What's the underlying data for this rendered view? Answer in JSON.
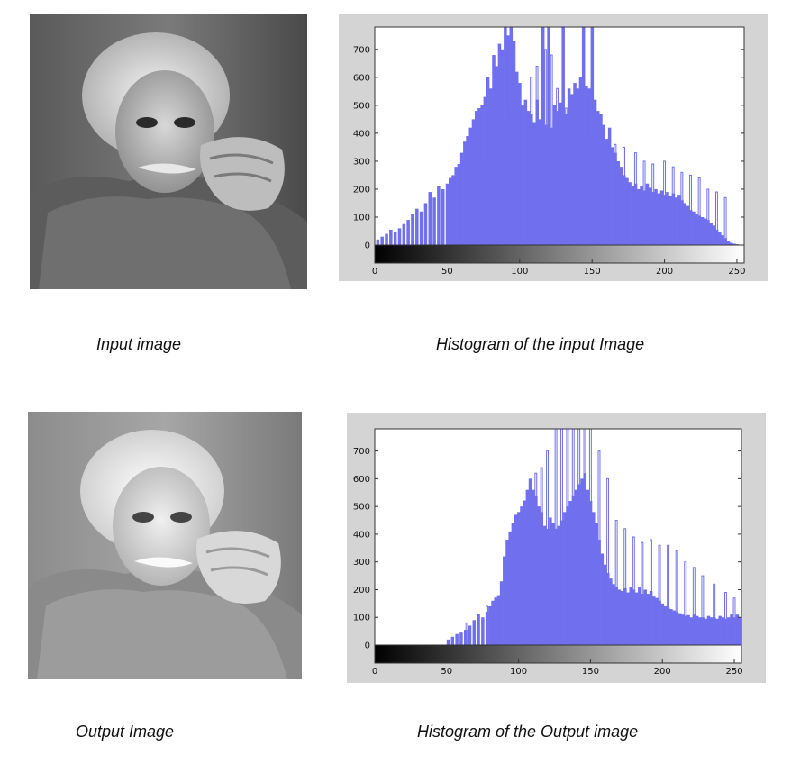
{
  "captions": {
    "input_image": "Input image",
    "input_histogram": "Histogram of the input Image",
    "output_image": "Output Image",
    "output_histogram": "Histogram of the Output image"
  },
  "colors": {
    "bars": "#7070ee",
    "panel_bg": "#d4d4d4",
    "plot_bg": "#ffffff"
  },
  "icons": {
    "photo": "portrait-photo"
  },
  "chart_data": [
    {
      "type": "bar",
      "name": "input-histogram",
      "xlim": [
        0,
        255
      ],
      "ylim": [
        0,
        780
      ],
      "xticks": [
        0,
        50,
        100,
        150,
        200,
        250
      ],
      "yticks": [
        0,
        100,
        200,
        300,
        400,
        500,
        600,
        700
      ],
      "colorbar": "grayscale",
      "bins": [
        [
          2,
          20
        ],
        [
          5,
          30
        ],
        [
          8,
          40
        ],
        [
          11,
          55
        ],
        [
          14,
          45
        ],
        [
          17,
          60
        ],
        [
          20,
          75
        ],
        [
          23,
          90
        ],
        [
          26,
          110
        ],
        [
          29,
          130
        ],
        [
          32,
          120
        ],
        [
          35,
          150
        ],
        [
          38,
          190
        ],
        [
          41,
          170
        ],
        [
          44,
          210
        ],
        [
          47,
          200
        ],
        [
          50,
          220
        ],
        [
          52,
          240
        ],
        [
          54,
          250
        ],
        [
          56,
          280
        ],
        [
          58,
          290
        ],
        [
          60,
          330
        ],
        [
          62,
          370
        ],
        [
          64,
          390
        ],
        [
          66,
          420
        ],
        [
          68,
          450
        ],
        [
          70,
          480
        ],
        [
          72,
          490
        ],
        [
          74,
          500
        ],
        [
          76,
          530
        ],
        [
          78,
          600
        ],
        [
          80,
          560
        ],
        [
          82,
          680
        ],
        [
          84,
          640
        ],
        [
          86,
          720
        ],
        [
          88,
          700
        ],
        [
          90,
          780
        ],
        [
          92,
          750
        ],
        [
          94,
          780
        ],
        [
          96,
          730
        ],
        [
          98,
          620
        ],
        [
          100,
          580
        ],
        [
          102,
          500
        ],
        [
          104,
          520
        ],
        [
          106,
          480
        ],
        [
          108,
          470
        ],
        [
          110,
          440
        ],
        [
          112,
          520
        ],
        [
          114,
          450
        ],
        [
          116,
          780
        ],
        [
          118,
          430
        ],
        [
          120,
          780
        ],
        [
          122,
          420
        ],
        [
          124,
          500
        ],
        [
          126,
          480
        ],
        [
          128,
          510
        ],
        [
          130,
          780
        ],
        [
          132,
          470
        ],
        [
          134,
          560
        ],
        [
          136,
          540
        ],
        [
          138,
          580
        ],
        [
          140,
          560
        ],
        [
          142,
          600
        ],
        [
          144,
          780
        ],
        [
          146,
          570
        ],
        [
          148,
          560
        ],
        [
          150,
          780
        ],
        [
          152,
          520
        ],
        [
          154,
          480
        ],
        [
          156,
          470
        ],
        [
          158,
          430
        ],
        [
          160,
          380
        ],
        [
          162,
          420
        ],
        [
          164,
          350
        ],
        [
          166,
          330
        ],
        [
          168,
          300
        ],
        [
          170,
          280
        ],
        [
          172,
          250
        ],
        [
          174,
          240
        ],
        [
          176,
          225
        ],
        [
          178,
          210
        ],
        [
          180,
          220
        ],
        [
          182,
          200
        ],
        [
          184,
          210
        ],
        [
          186,
          195
        ],
        [
          188,
          220
        ],
        [
          190,
          205
        ],
        [
          192,
          190
        ],
        [
          194,
          200
        ],
        [
          196,
          185
        ],
        [
          198,
          195
        ],
        [
          200,
          180
        ],
        [
          202,
          190
        ],
        [
          204,
          175
        ],
        [
          206,
          185
        ],
        [
          208,
          170
        ],
        [
          210,
          180
        ],
        [
          212,
          160
        ],
        [
          214,
          150
        ],
        [
          216,
          140
        ],
        [
          218,
          125
        ],
        [
          220,
          120
        ],
        [
          222,
          110
        ],
        [
          224,
          105
        ],
        [
          226,
          100
        ],
        [
          228,
          95
        ],
        [
          230,
          90
        ],
        [
          232,
          80
        ],
        [
          234,
          70
        ],
        [
          236,
          55
        ],
        [
          238,
          45
        ],
        [
          240,
          35
        ],
        [
          242,
          25
        ],
        [
          244,
          15
        ],
        [
          246,
          8
        ],
        [
          248,
          5
        ],
        [
          250,
          3
        ]
      ],
      "spikes": [
        [
          50,
          190
        ],
        [
          60,
          200
        ],
        [
          68,
          230
        ],
        [
          76,
          300
        ],
        [
          82,
          330
        ],
        [
          86,
          400
        ],
        [
          90,
          430
        ],
        [
          94,
          480
        ],
        [
          100,
          550
        ],
        [
          108,
          600
        ],
        [
          112,
          640
        ],
        [
          118,
          700
        ],
        [
          122,
          680
        ],
        [
          126,
          560
        ],
        [
          132,
          490
        ],
        [
          140,
          440
        ],
        [
          146,
          400
        ],
        [
          154,
          380
        ],
        [
          160,
          360
        ],
        [
          166,
          360
        ],
        [
          172,
          350
        ],
        [
          180,
          330
        ],
        [
          186,
          300
        ],
        [
          192,
          290
        ],
        [
          200,
          300
        ],
        [
          206,
          280
        ],
        [
          212,
          260
        ],
        [
          218,
          250
        ],
        [
          224,
          240
        ],
        [
          230,
          200
        ],
        [
          236,
          190
        ],
        [
          242,
          170
        ]
      ]
    },
    {
      "type": "bar",
      "name": "output-histogram",
      "xlim": [
        0,
        255
      ],
      "ylim": [
        0,
        780
      ],
      "xticks": [
        0,
        50,
        100,
        150,
        200,
        250
      ],
      "yticks": [
        0,
        100,
        200,
        300,
        400,
        500,
        600,
        700
      ],
      "colorbar": "grayscale",
      "bins": [
        [
          51,
          20
        ],
        [
          54,
          30
        ],
        [
          57,
          40
        ],
        [
          60,
          45
        ],
        [
          63,
          55
        ],
        [
          66,
          70
        ],
        [
          69,
          90
        ],
        [
          72,
          110
        ],
        [
          75,
          100
        ],
        [
          78,
          120
        ],
        [
          80,
          140
        ],
        [
          82,
          160
        ],
        [
          84,
          170
        ],
        [
          86,
          180
        ],
        [
          88,
          230
        ],
        [
          90,
          320
        ],
        [
          92,
          380
        ],
        [
          94,
          410
        ],
        [
          96,
          440
        ],
        [
          98,
          470
        ],
        [
          100,
          480
        ],
        [
          102,
          500
        ],
        [
          104,
          520
        ],
        [
          106,
          560
        ],
        [
          108,
          600
        ],
        [
          110,
          560
        ],
        [
          112,
          540
        ],
        [
          114,
          500
        ],
        [
          116,
          480
        ],
        [
          118,
          430
        ],
        [
          120,
          420
        ],
        [
          122,
          460
        ],
        [
          124,
          440
        ],
        [
          126,
          420
        ],
        [
          128,
          430
        ],
        [
          130,
          450
        ],
        [
          132,
          480
        ],
        [
          134,
          500
        ],
        [
          136,
          520
        ],
        [
          138,
          540
        ],
        [
          140,
          560
        ],
        [
          142,
          580
        ],
        [
          144,
          600
        ],
        [
          146,
          620
        ],
        [
          148,
          560
        ],
        [
          150,
          520
        ],
        [
          152,
          480
        ],
        [
          154,
          440
        ],
        [
          156,
          380
        ],
        [
          158,
          330
        ],
        [
          160,
          290
        ],
        [
          162,
          260
        ],
        [
          164,
          240
        ],
        [
          166,
          220
        ],
        [
          168,
          210
        ],
        [
          170,
          200
        ],
        [
          172,
          195
        ],
        [
          174,
          205
        ],
        [
          176,
          190
        ],
        [
          178,
          210
        ],
        [
          180,
          200
        ],
        [
          182,
          190
        ],
        [
          184,
          210
        ],
        [
          186,
          185
        ],
        [
          188,
          200
        ],
        [
          190,
          185
        ],
        [
          192,
          195
        ],
        [
          194,
          175
        ],
        [
          196,
          170
        ],
        [
          198,
          160
        ],
        [
          200,
          150
        ],
        [
          202,
          140
        ],
        [
          204,
          135
        ],
        [
          206,
          130
        ],
        [
          208,
          125
        ],
        [
          210,
          120
        ],
        [
          212,
          115
        ],
        [
          214,
          110
        ],
        [
          216,
          105
        ],
        [
          218,
          108
        ],
        [
          220,
          100
        ],
        [
          222,
          110
        ],
        [
          224,
          105
        ],
        [
          226,
          100
        ],
        [
          228,
          100
        ],
        [
          230,
          95
        ],
        [
          232,
          105
        ],
        [
          234,
          100
        ],
        [
          236,
          100
        ],
        [
          238,
          95
        ],
        [
          240,
          105
        ],
        [
          242,
          100
        ],
        [
          244,
          95
        ],
        [
          246,
          100
        ],
        [
          248,
          110
        ],
        [
          250,
          100
        ],
        [
          252,
          110
        ],
        [
          254,
          100
        ]
      ],
      "spikes": [
        [
          64,
          80
        ],
        [
          72,
          110
        ],
        [
          78,
          140
        ],
        [
          84,
          170
        ],
        [
          88,
          200
        ],
        [
          92,
          230
        ],
        [
          96,
          320
        ],
        [
          100,
          390
        ],
        [
          104,
          520
        ],
        [
          108,
          580
        ],
        [
          112,
          620
        ],
        [
          116,
          640
        ],
        [
          120,
          700
        ],
        [
          126,
          780
        ],
        [
          130,
          780
        ],
        [
          134,
          780
        ],
        [
          138,
          780
        ],
        [
          142,
          780
        ],
        [
          146,
          780
        ],
        [
          150,
          780
        ],
        [
          156,
          700
        ],
        [
          162,
          600
        ],
        [
          168,
          450
        ],
        [
          174,
          420
        ],
        [
          180,
          390
        ],
        [
          186,
          370
        ],
        [
          192,
          380
        ],
        [
          198,
          360
        ],
        [
          204,
          360
        ],
        [
          210,
          340
        ],
        [
          216,
          300
        ],
        [
          222,
          280
        ],
        [
          228,
          250
        ],
        [
          236,
          220
        ],
        [
          244,
          190
        ],
        [
          250,
          170
        ]
      ]
    }
  ]
}
